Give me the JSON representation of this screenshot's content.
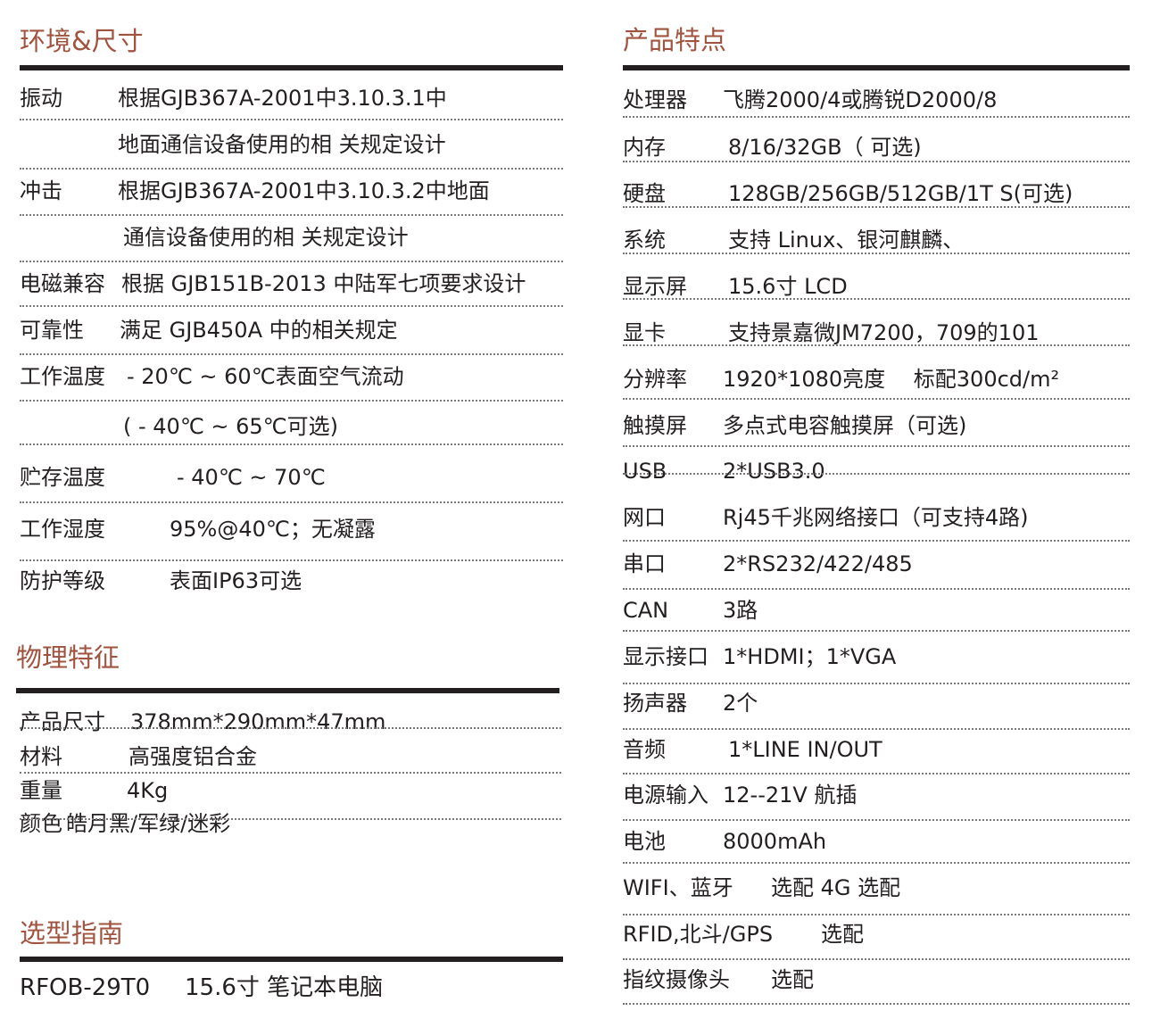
{
  "environment": {
    "title": "环境&尺寸",
    "rows": [
      {
        "label": "振动",
        "value": "根据GJB367A-2001中3.10.3.1中"
      },
      {
        "label": "",
        "value": "地面通信设备使用的相 关规定设计"
      },
      {
        "label": "冲击",
        "value": "根据GJB367A-2001中3.10.3.2中地面"
      },
      {
        "label": "",
        "value": "通信设备使用的相 关规定设计"
      },
      {
        "label": "电磁兼容",
        "value": "根据 GJB151B-2013 中陆军七项要求设计"
      },
      {
        "label": "可靠性",
        "value": "满足 GJB450A 中的相关规定"
      },
      {
        "label": "工作温度",
        "value": "- 20℃ ~ 60℃表面空气流动"
      },
      {
        "label": "",
        "value": "( - 40℃ ~ 65℃可选)"
      },
      {
        "label": "贮存温度",
        "value": "- 40℃ ~ 70℃"
      },
      {
        "label": "工作湿度",
        "value": "95%@40℃；无凝露"
      },
      {
        "label": "防护等级",
        "value": "表面IP63可选"
      }
    ]
  },
  "physical": {
    "title": "物理特征",
    "rows": [
      {
        "label": "产品尺寸",
        "value": "378mm*290mm*47mm"
      },
      {
        "label": "材料",
        "value": "高强度铝合金"
      },
      {
        "label": "重量",
        "value": "4Kg"
      },
      {
        "label": "颜色",
        "value": "皓月黑/军绿/迷彩"
      }
    ]
  },
  "selection": {
    "title": "选型指南",
    "model": "RFOB-29T0",
    "description": "15.6寸 笔记本电脑"
  },
  "features": {
    "title": "产品特点",
    "rows": [
      {
        "label": "处理器",
        "value": "飞腾2000/4或腾锐D2000/8"
      },
      {
        "label": "内存",
        "value": "8/16/32GB（ 可选)"
      },
      {
        "label": "硬盘",
        "value": "128GB/256GB/512GB/1T S(可选)"
      },
      {
        "label": "系统",
        "value": "支持 Linux、银河麒麟、"
      },
      {
        "label": "显示屏",
        "value": "15.6寸 LCD"
      },
      {
        "label": "显卡",
        "value": "支持景嘉微JM7200，709的101"
      },
      {
        "label": "分辨率",
        "value": "1920*1080亮度　 标配300cd/m²"
      },
      {
        "label": "触摸屏",
        "value": "多点式电容触摸屏（可选)"
      },
      {
        "label": "USB",
        "value": "2*USB3.0"
      },
      {
        "label": "网口",
        "value": "Rj45千兆网络接口（可支持4路)"
      },
      {
        "label": "串口",
        "value": "2*RS232/422/485"
      },
      {
        "label": "CAN",
        "value": "3路"
      },
      {
        "label": "显示接口",
        "value": "1*HDMI；1*VGA"
      },
      {
        "label": "扬声器",
        "value": "2个"
      },
      {
        "label": "音频",
        "value": "1*LINE IN/OUT"
      },
      {
        "label": "电源输入",
        "value": "12--21V 航插"
      },
      {
        "label": "电池",
        "value": "8000mAh"
      },
      {
        "label": "WIFI、蓝牙",
        "value": "选配 4G  选配"
      },
      {
        "label": "RFID,北斗/GPS",
        "value": "选配"
      },
      {
        "label": "指纹摄像头",
        "value": "选配"
      }
    ]
  }
}
